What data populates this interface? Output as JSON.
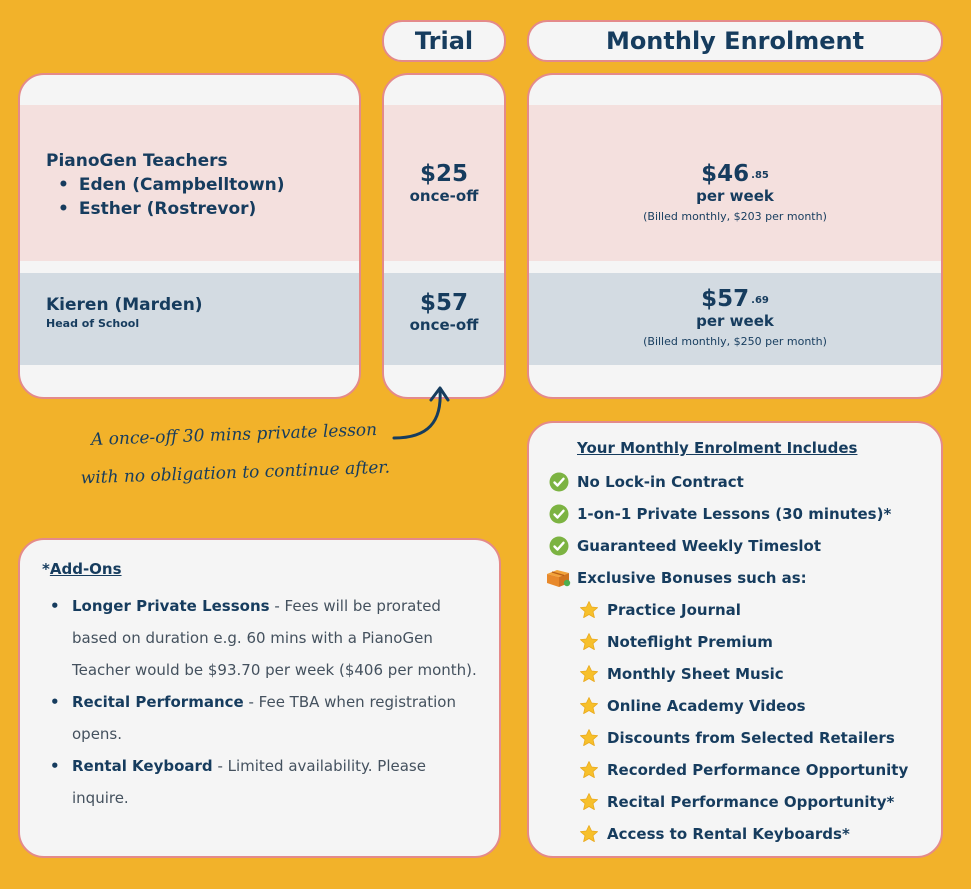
{
  "headers": {
    "trial": "Trial",
    "monthly": "Monthly Enrolment"
  },
  "teachers": {
    "group_title": "PianoGen Teachers",
    "members": [
      "Eden (Campbelltown)",
      "Esther (Rostrevor)"
    ],
    "head_name": "Kieren (Marden)",
    "head_role": "Head of School"
  },
  "trial_prices": [
    {
      "amount": "$25",
      "label": "once-off"
    },
    {
      "amount": "$57",
      "label": "once-off"
    }
  ],
  "monthly_prices": [
    {
      "amount": "$46",
      "cents": ".85",
      "period": "per week",
      "billed": "(Billed monthly, $203 per month)"
    },
    {
      "amount": "$57",
      "cents": ".69",
      "period": "per week",
      "billed": "(Billed monthly, $250 per month)"
    }
  ],
  "trial_note": {
    "line1": "A once-off 30 mins private lesson",
    "line2": "with no obligation to continue after."
  },
  "addons": {
    "title_prefix": "*",
    "title": "Add-Ons",
    "items": [
      {
        "name": "Longer Private Lessons",
        "desc": " - Fees will be prorated based on duration e.g. 60 mins with a PianoGen Teacher would be $93.70 per week ($406 per month)."
      },
      {
        "name": "Recital Performance",
        "desc": " - Fee TBA when registration opens."
      },
      {
        "name": "Rental Keyboard",
        "desc": " - Limited availability. Please inquire."
      }
    ]
  },
  "includes": {
    "title": "Your Monthly Enrolment Includes",
    "items": [
      {
        "text": "No Lock-in Contract",
        "icon": "check-icon"
      },
      {
        "text": "1-on-1 Private Lessons (30 minutes)*",
        "icon": "check-icon"
      },
      {
        "text": "Guaranteed Weekly Timeslot",
        "icon": "check-icon"
      },
      {
        "text": "Exclusive Bonuses such as:",
        "icon": "gift-box-icon"
      }
    ],
    "bonuses": [
      "Practice Journal",
      "Noteflight Premium",
      "Monthly Sheet Music",
      "Online Academy Videos",
      "Discounts from Selected Retailers",
      "Recorded Performance Opportunity",
      "Recital Performance Opportunity*",
      "Access to Rental Keyboards*"
    ]
  },
  "colors": {
    "background": "#F2B22A",
    "navy": "#163C5E",
    "card_border": "#E48A8A",
    "pink_band": "#F4E0DE",
    "blue_band": "#D3DBE2",
    "check_green": "#7CB342",
    "star_yellow": "#F7C02B"
  }
}
